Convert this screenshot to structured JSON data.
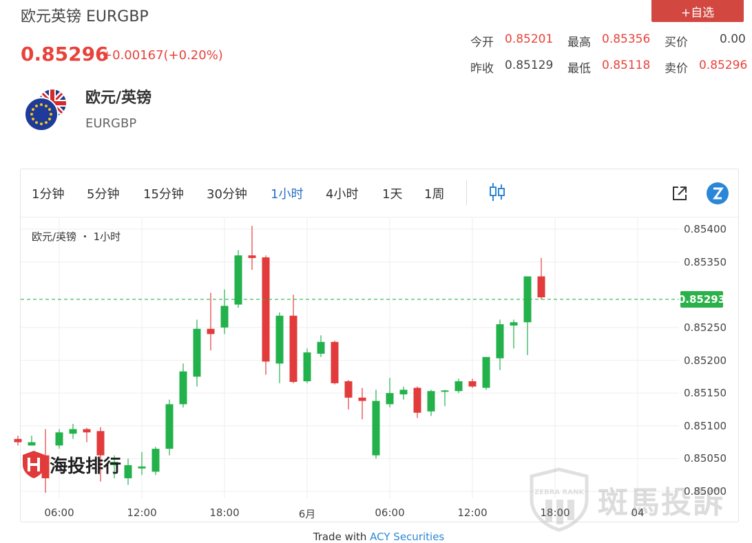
{
  "header": {
    "title": "欧元英镑 EURGBP",
    "price": "0.85296",
    "change": "+0.00167(+0.20%)",
    "add_watchlist_label": "+自选"
  },
  "stats": {
    "open_label": "今开",
    "open_value": "0.85201",
    "high_label": "最高",
    "high_value": "0.85356",
    "bid_label": "买价",
    "bid_value": "0.00",
    "prev_close_label": "昨收",
    "prev_close_value": "0.85129",
    "low_label": "最低",
    "low_value": "0.85118",
    "ask_label": "卖价",
    "ask_value": "0.85296"
  },
  "pair": {
    "name": "欧元/英镑",
    "code": "EURGBP",
    "flag_icon": "eu-uk-flag-icon"
  },
  "toolbar": {
    "timeframes": [
      "1分钟",
      "5分钟",
      "15分钟",
      "30分钟",
      "1小时",
      "4小时",
      "1天",
      "1周"
    ],
    "active_timeframe": "1小时",
    "candle_style_icon": "candlestick-icon",
    "popout_icon": "popout-icon",
    "brand_icon": "tradingview-logo-icon"
  },
  "chart_data": {
    "type": "candlestick",
    "legend": "欧元/英镑 ・ 1小时",
    "y_ticks": [
      "0.85400",
      "0.85350",
      "0.85250",
      "0.85200",
      "0.85150",
      "0.85100",
      "0.85050",
      "0.85000"
    ],
    "ylim": [
      0.84985,
      0.85415
    ],
    "x_ticks": [
      "06:00",
      "12:00",
      "18:00",
      "6月",
      "06:00",
      "12:00",
      "18:00",
      "04"
    ],
    "current_price": 0.85293,
    "current_price_label": "0.85293",
    "up_color": "#22b14a",
    "down_color": "#e23b3b",
    "candles": [
      {
        "o": 0.8508,
        "h": 0.85085,
        "l": 0.8507,
        "c": 0.85075
      },
      {
        "o": 0.8507,
        "h": 0.85085,
        "l": 0.8507,
        "c": 0.85075
      },
      {
        "o": 0.85055,
        "h": 0.85095,
        "l": 0.84998,
        "c": 0.8502
      },
      {
        "o": 0.8507,
        "h": 0.85095,
        "l": 0.85065,
        "c": 0.8509
      },
      {
        "o": 0.85088,
        "h": 0.85103,
        "l": 0.8508,
        "c": 0.85095
      },
      {
        "o": 0.85095,
        "h": 0.85097,
        "l": 0.85075,
        "c": 0.8509
      },
      {
        "o": 0.85092,
        "h": 0.85098,
        "l": 0.85015,
        "c": 0.85055
      },
      {
        "o": 0.8504,
        "h": 0.85055,
        "l": 0.8502,
        "c": 0.85045
      },
      {
        "o": 0.8502,
        "h": 0.8505,
        "l": 0.8501,
        "c": 0.8504
      },
      {
        "o": 0.85035,
        "h": 0.8506,
        "l": 0.85025,
        "c": 0.85038
      },
      {
        "o": 0.8503,
        "h": 0.85068,
        "l": 0.85025,
        "c": 0.85065
      },
      {
        "o": 0.85065,
        "h": 0.8514,
        "l": 0.85055,
        "c": 0.85133
      },
      {
        "o": 0.85133,
        "h": 0.85195,
        "l": 0.85128,
        "c": 0.85183
      },
      {
        "o": 0.85175,
        "h": 0.85262,
        "l": 0.8516,
        "c": 0.85248
      },
      {
        "o": 0.85248,
        "h": 0.85303,
        "l": 0.85215,
        "c": 0.8524
      },
      {
        "o": 0.8525,
        "h": 0.85308,
        "l": 0.8524,
        "c": 0.85283
      },
      {
        "o": 0.85285,
        "h": 0.85368,
        "l": 0.8528,
        "c": 0.8536
      },
      {
        "o": 0.8536,
        "h": 0.85405,
        "l": 0.85338,
        "c": 0.85356
      },
      {
        "o": 0.85357,
        "h": 0.8536,
        "l": 0.85178,
        "c": 0.85198
      },
      {
        "o": 0.85195,
        "h": 0.85273,
        "l": 0.85165,
        "c": 0.85268
      },
      {
        "o": 0.85268,
        "h": 0.853,
        "l": 0.85165,
        "c": 0.85167
      },
      {
        "o": 0.85168,
        "h": 0.85218,
        "l": 0.85165,
        "c": 0.85212
      },
      {
        "o": 0.8521,
        "h": 0.85238,
        "l": 0.85205,
        "c": 0.85228
      },
      {
        "o": 0.85228,
        "h": 0.8523,
        "l": 0.85163,
        "c": 0.85165
      },
      {
        "o": 0.85168,
        "h": 0.8517,
        "l": 0.85125,
        "c": 0.85143
      },
      {
        "o": 0.85143,
        "h": 0.85158,
        "l": 0.8511,
        "c": 0.85138
      },
      {
        "o": 0.85055,
        "h": 0.85155,
        "l": 0.8505,
        "c": 0.85138
      },
      {
        "o": 0.85133,
        "h": 0.85173,
        "l": 0.85128,
        "c": 0.8515
      },
      {
        "o": 0.85148,
        "h": 0.8516,
        "l": 0.8514,
        "c": 0.85155
      },
      {
        "o": 0.85158,
        "h": 0.8516,
        "l": 0.85112,
        "c": 0.8512
      },
      {
        "o": 0.85122,
        "h": 0.85155,
        "l": 0.85115,
        "c": 0.85153
      },
      {
        "o": 0.85153,
        "h": 0.85155,
        "l": 0.8513,
        "c": 0.85154
      },
      {
        "o": 0.85153,
        "h": 0.85172,
        "l": 0.8515,
        "c": 0.85168
      },
      {
        "o": 0.85168,
        "h": 0.85172,
        "l": 0.85158,
        "c": 0.8516
      },
      {
        "o": 0.85158,
        "h": 0.85205,
        "l": 0.85155,
        "c": 0.85205
      },
      {
        "o": 0.85203,
        "h": 0.85262,
        "l": 0.85185,
        "c": 0.85255
      },
      {
        "o": 0.85253,
        "h": 0.85262,
        "l": 0.85218,
        "c": 0.85258
      },
      {
        "o": 0.85258,
        "h": 0.85328,
        "l": 0.85208,
        "c": 0.85328
      },
      {
        "o": 0.85328,
        "h": 0.85356,
        "l": 0.85293,
        "c": 0.85296
      }
    ]
  },
  "footer": {
    "prefix": "Trade with ",
    "link": "ACY Securities"
  },
  "watermarks": {
    "left_text": "海投排行",
    "right_text": "斑馬投訴",
    "right_badge_text": "ZEBRA RANK"
  }
}
